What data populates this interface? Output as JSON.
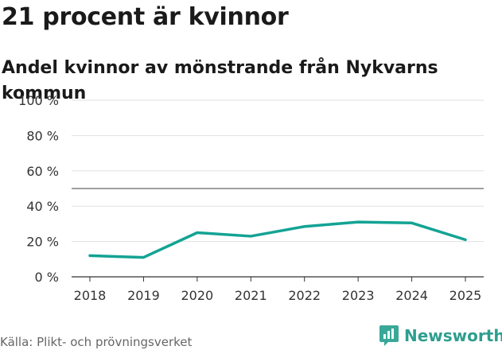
{
  "header": {
    "title": "21 procent är kvinnor"
  },
  "chart_data": {
    "type": "line",
    "title": "Andel kvinnor av mönstrande från Nykvarns kommun",
    "xlabel": "",
    "ylabel": "",
    "x": [
      "2018",
      "2019",
      "2020",
      "2021",
      "2022",
      "2023",
      "2024",
      "2025"
    ],
    "series": [
      {
        "name": "Andel kvinnor",
        "values": [
          12,
          11,
          25,
          23,
          28.5,
          31,
          30.5,
          21
        ]
      }
    ],
    "ylim": [
      0,
      100
    ],
    "yticks": [
      0,
      20,
      40,
      60,
      80,
      100
    ],
    "ytick_labels": [
      "0 %",
      "20 %",
      "40 %",
      "60 %",
      "80 %",
      "100 %"
    ],
    "reference_line": 50,
    "grid": true,
    "line_color": "#13a394"
  },
  "footer": {
    "source": "Källa: Plikt- och prövningsverket",
    "brand": "Newsworthy",
    "brand_icon": "newsworthy-logo-icon",
    "brand_color": "#2e9e8f"
  }
}
